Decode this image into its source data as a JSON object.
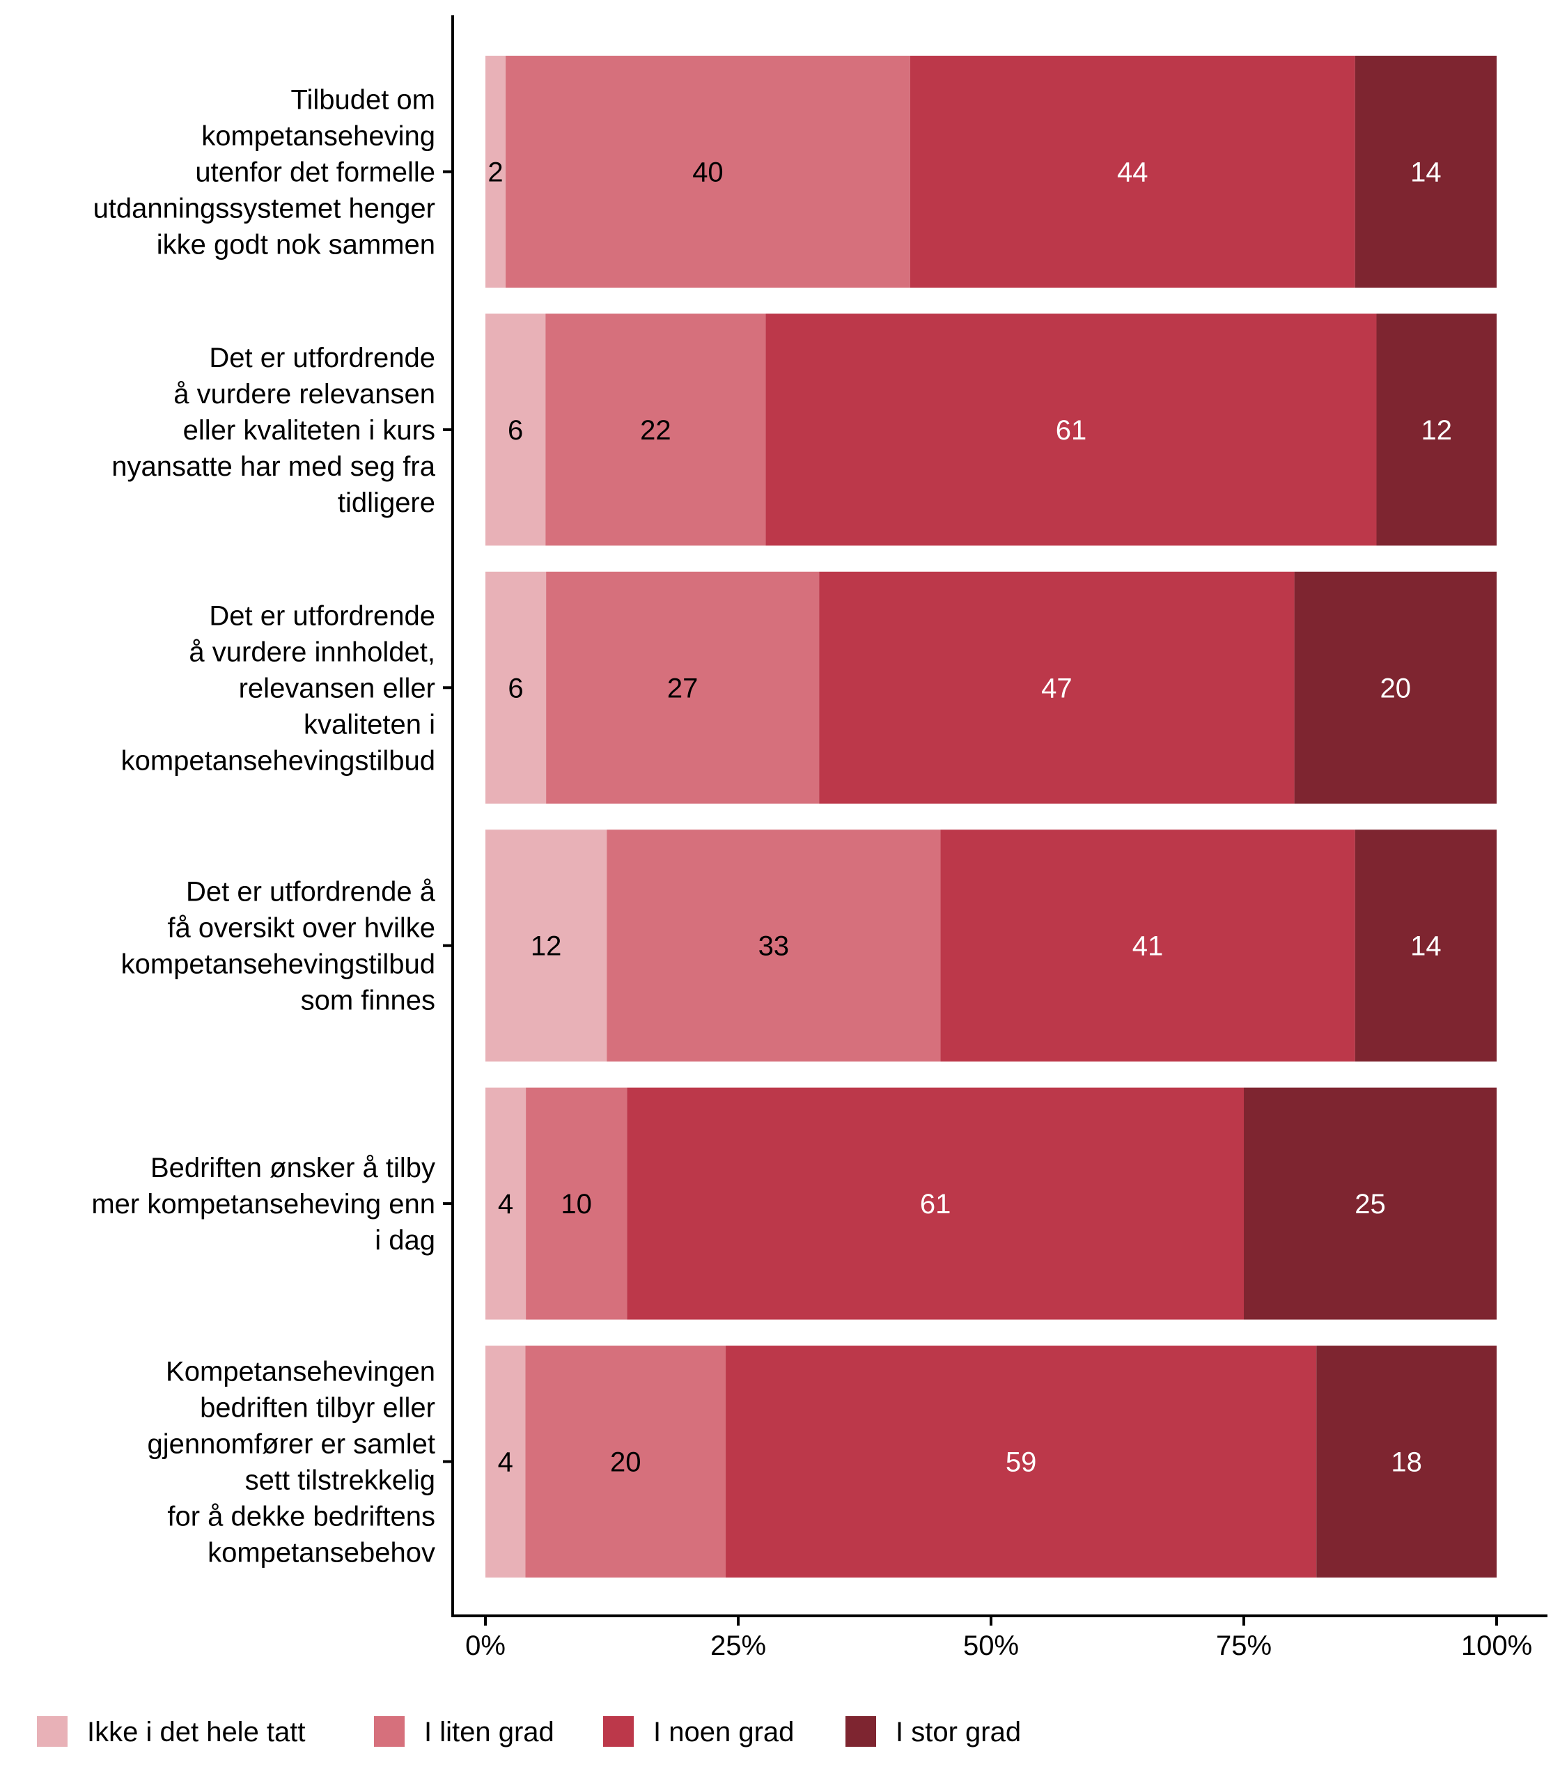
{
  "chart_data": {
    "type": "bar",
    "orientation": "horizontal",
    "stacked": true,
    "title": "",
    "xlabel": "",
    "ylabel": "",
    "xlim": [
      0,
      100
    ],
    "x_ticks": [
      "0%",
      "25%",
      "50%",
      "75%",
      "100%"
    ],
    "x_tick_values": [
      0,
      25,
      50,
      75,
      100
    ],
    "grid": false,
    "legend_position": "bottom",
    "categories": [
      [
        "Tilbudet om",
        "kompetanseheving",
        "utenfor det formelle",
        "utdanningssystemet henger",
        "ikke godt nok sammen"
      ],
      [
        "Det er utfordrende",
        "å vurdere relevansen",
        "eller kvaliteten i kurs",
        "nyansatte har med seg fra",
        "tidligere"
      ],
      [
        "Det er utfordrende",
        "å vurdere innholdet,",
        "relevansen eller",
        "kvaliteten i",
        "kompetansehevingstilbud"
      ],
      [
        "Det er utfordrende å",
        "få oversikt over hvilke",
        "kompetansehevingstilbud",
        "som finnes"
      ],
      [
        "Bedriften ønsker å tilby",
        "mer kompetanseheving enn",
        "i dag"
      ],
      [
        "Kompetansehevingen",
        "bedriften tilbyr eller",
        "gjennomfører er samlet",
        "sett tilstrekkelig",
        "for å dekke bedriftens",
        "kompetansebehov"
      ]
    ],
    "series": [
      {
        "name": "Ikke i det hele tatt",
        "color": "#E8B1B7",
        "label_color": "#000000",
        "values": [
          2,
          6,
          6,
          12,
          4,
          4
        ]
      },
      {
        "name": "I liten grad",
        "color": "#D6707C",
        "label_color": "#000000",
        "values": [
          40,
          22,
          27,
          33,
          10,
          20
        ]
      },
      {
        "name": "I noen grad",
        "color": "#BC384A",
        "label_color": "#ffffff",
        "values": [
          44,
          61,
          47,
          41,
          61,
          59
        ]
      },
      {
        "name": "I stor grad",
        "color": "#7E2530",
        "label_color": "#ffffff",
        "values": [
          14,
          12,
          20,
          14,
          25,
          18
        ]
      }
    ]
  }
}
